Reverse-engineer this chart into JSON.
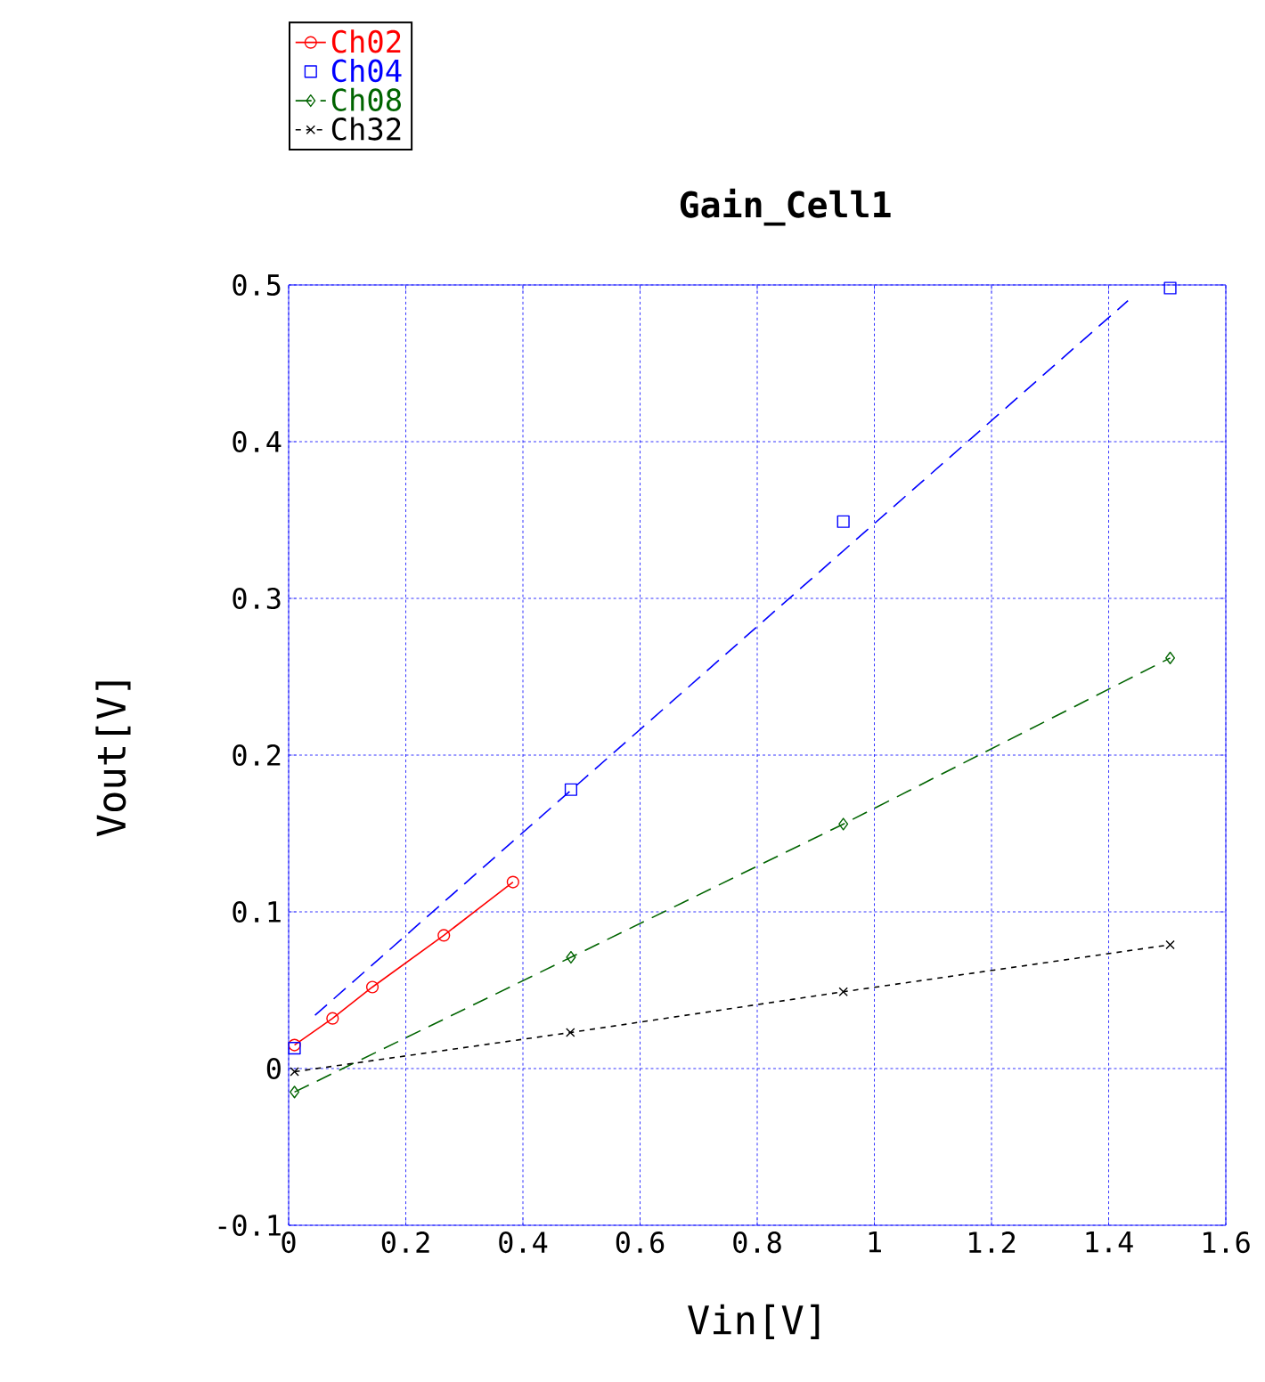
{
  "chart_data": {
    "type": "line",
    "title": "Gain_Cell1",
    "xlabel": "Vin[V]",
    "ylabel": "Vout[V]",
    "xlim": [
      0,
      1.6
    ],
    "ylim": [
      -0.1,
      0.5
    ],
    "xticks": [
      0,
      0.2,
      0.4,
      0.6,
      0.8,
      1,
      1.2,
      1.4,
      1.6
    ],
    "yticks": [
      -0.1,
      0,
      0.1,
      0.2,
      0.3,
      0.4,
      0.5
    ],
    "grid": true,
    "legend": "top left",
    "series": [
      {
        "name": "Ch02",
        "color": "#ff0000",
        "marker": "circle",
        "line_style": "solid",
        "x": [
          0.01,
          0.075,
          0.143,
          0.265,
          0.383
        ],
        "values": [
          0.015,
          0.032,
          0.052,
          0.085,
          0.119
        ]
      },
      {
        "name": "Ch04",
        "type": "scatter",
        "color": "#0000ff",
        "marker": "square",
        "x": [
          0.01,
          0.482,
          0.947,
          1.505
        ],
        "values": [
          0.013,
          0.178,
          0.349,
          0.498
        ]
      },
      {
        "name": "Ch08",
        "color": "#006400",
        "marker": "diamond",
        "line_style": "dashed",
        "x": [
          0.01,
          0.482,
          0.947,
          1.505
        ],
        "values": [
          -0.015,
          0.071,
          0.156,
          0.262
        ]
      },
      {
        "name": "Ch32",
        "color": "#000000",
        "marker": "cross",
        "line_style": "dotted",
        "x": [
          0.01,
          0.481,
          0.947,
          1.505
        ],
        "values": [
          -0.002,
          0.023,
          0.049,
          0.079
        ]
      },
      {
        "color": "#0000ff",
        "marker": "none",
        "line_style": "dashed",
        "x": [
          0.045,
          1.433
        ],
        "values": [
          0.034,
          0.49
        ]
      }
    ]
  }
}
